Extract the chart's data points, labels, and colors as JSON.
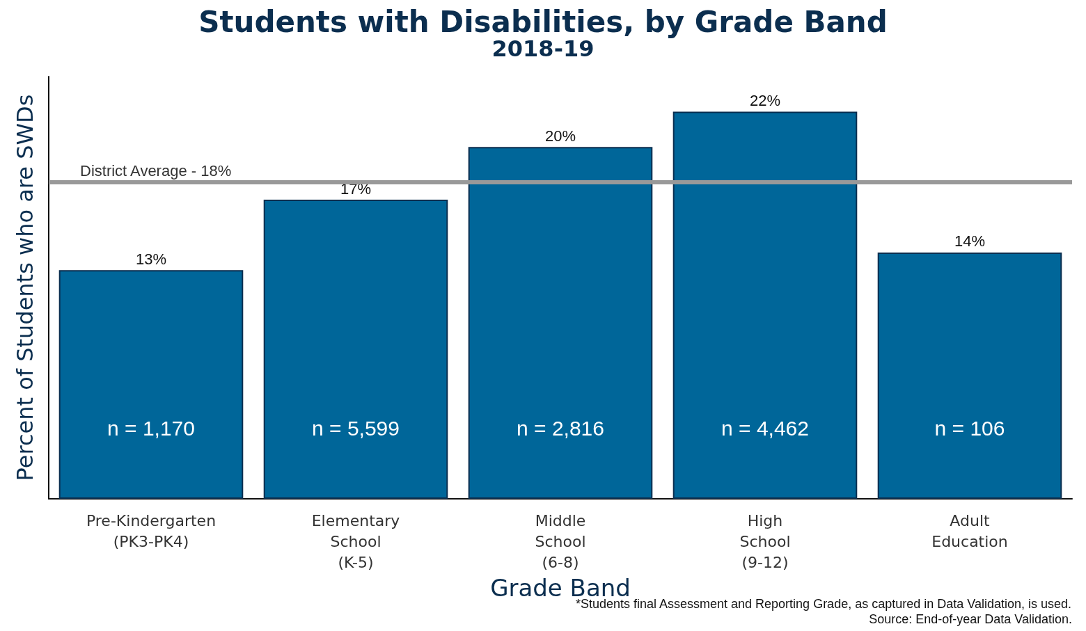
{
  "chart_data": {
    "type": "bar",
    "title": "Students with Disabilities, by Grade Band",
    "subtitle": "2018-19",
    "xlabel": "Grade Band",
    "ylabel": "Percent of Students who are SWDs",
    "categories": [
      "Pre-Kindergarten\n(PK3-PK4)",
      "Elementary\nSchool\n(K-5)",
      "Middle\nSchool\n(6-8)",
      "High\nSchool\n(9-12)",
      "Adult\nEducation"
    ],
    "values": [
      13,
      17,
      20,
      22,
      14
    ],
    "color": "#006699",
    "value_labels": [
      "13%",
      "17%",
      "20%",
      "22%",
      "14%"
    ],
    "ylim": [
      0,
      24
    ],
    "tick_labels": "x",
    "grid": false,
    "ref_lines": [
      {
        "axis": "y",
        "value": 18,
        "label": "District Average - 18%",
        "color": "#999999"
      }
    ],
    "annotations": [
      "n = 1,170",
      "n = 5,599",
      "n = 2,816",
      "n = 4,462",
      "n = 106",
      "*Students final Assessment and Reporting Grade, as captured in Data Validation, is used.",
      "Source: End-of-year Data Validation."
    ]
  }
}
